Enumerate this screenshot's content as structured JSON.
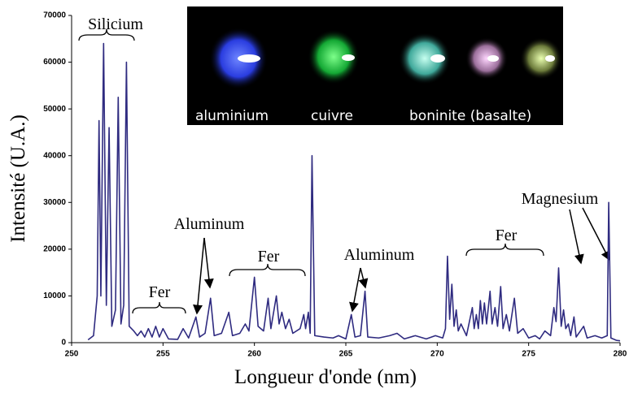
{
  "chart_data": {
    "type": "line",
    "xlabel": "Longueur d'onde (nm)",
    "ylabel": "Intensité (U.A.)",
    "color": "#2f2b80",
    "xlim": [
      250,
      280
    ],
    "xticks": [
      250,
      255,
      260,
      265,
      270,
      275,
      280
    ],
    "ylim": [
      0,
      70000
    ],
    "yticks": [
      0,
      10000,
      20000,
      30000,
      40000,
      50000,
      60000,
      70000
    ],
    "annotations": [
      "Silicium",
      "Fer",
      "Aluminum",
      "Fer",
      "Aluminum",
      "Fer",
      "Magnesium"
    ],
    "inset_labels": [
      "aluminium",
      "cuivre",
      "boninite (basalte)"
    ],
    "x": [
      250.9,
      251.2,
      251.4,
      251.5,
      251.6,
      251.75,
      251.9,
      252.05,
      252.2,
      252.4,
      252.55,
      252.7,
      252.85,
      253.0,
      253.15,
      253.4,
      253.6,
      253.8,
      254.0,
      254.2,
      254.4,
      254.6,
      254.8,
      255.0,
      255.3,
      255.8,
      256.1,
      256.4,
      256.8,
      257.0,
      257.3,
      257.6,
      257.8,
      258.2,
      258.6,
      258.8,
      259.2,
      259.5,
      259.7,
      260.0,
      260.2,
      260.5,
      260.75,
      260.9,
      261.2,
      261.35,
      261.5,
      261.7,
      261.9,
      262.1,
      262.5,
      262.7,
      262.8,
      262.95,
      263.05,
      263.15,
      263.3,
      263.8,
      264.3,
      264.6,
      265.0,
      265.3,
      265.5,
      265.8,
      266.05,
      266.2,
      266.8,
      267.4,
      267.8,
      268.2,
      268.8,
      269.4,
      269.9,
      270.3,
      270.45,
      270.56,
      270.68,
      270.8,
      270.92,
      271.04,
      271.15,
      271.3,
      271.6,
      271.92,
      272.02,
      272.14,
      272.25,
      272.36,
      272.47,
      272.58,
      272.7,
      272.89,
      273.0,
      273.16,
      273.3,
      273.47,
      273.6,
      273.78,
      273.95,
      274.22,
      274.4,
      274.7,
      275.0,
      275.36,
      275.6,
      275.89,
      276.2,
      276.38,
      276.5,
      276.64,
      276.78,
      276.91,
      277.03,
      277.17,
      277.3,
      277.48,
      277.6,
      278.01,
      278.2,
      278.63,
      279.0,
      279.3,
      279.38,
      279.5,
      279.8,
      280.0
    ],
    "values": [
      600,
      1500,
      10000,
      47500,
      10000,
      64000,
      8000,
      46000,
      3500,
      7000,
      52500,
      4000,
      8000,
      60000,
      3500,
      2500,
      1500,
      2500,
      1200,
      3000,
      1200,
      3500,
      1200,
      3000,
      800,
      700,
      3000,
      1000,
      5500,
      1200,
      2000,
      9500,
      1500,
      2000,
      6500,
      1500,
      2000,
      4000,
      2500,
      14000,
      3500,
      2500,
      9500,
      3000,
      10000,
      4000,
      6500,
      3000,
      5000,
      2000,
      3000,
      6000,
      3000,
      6500,
      2000,
      40000,
      1500,
      1200,
      1000,
      1500,
      800,
      6000,
      1200,
      1500,
      11000,
      1200,
      1000,
      1500,
      2000,
      800,
      1500,
      800,
      1500,
      1000,
      3000,
      18500,
      5000,
      12500,
      3500,
      7000,
      2500,
      4000,
      1500,
      7500,
      3000,
      6000,
      3000,
      9000,
      4000,
      8500,
      4000,
      11000,
      4000,
      7500,
      3500,
      12000,
      3000,
      6000,
      2500,
      9500,
      2000,
      3000,
      1000,
      1500,
      800,
      2500,
      1500,
      7500,
      4500,
      16000,
      3500,
      7000,
      3000,
      4000,
      1500,
      5500,
      1200,
      3500,
      1000,
      1500,
      1000,
      1500,
      30000,
      1000,
      500,
      400
    ]
  }
}
